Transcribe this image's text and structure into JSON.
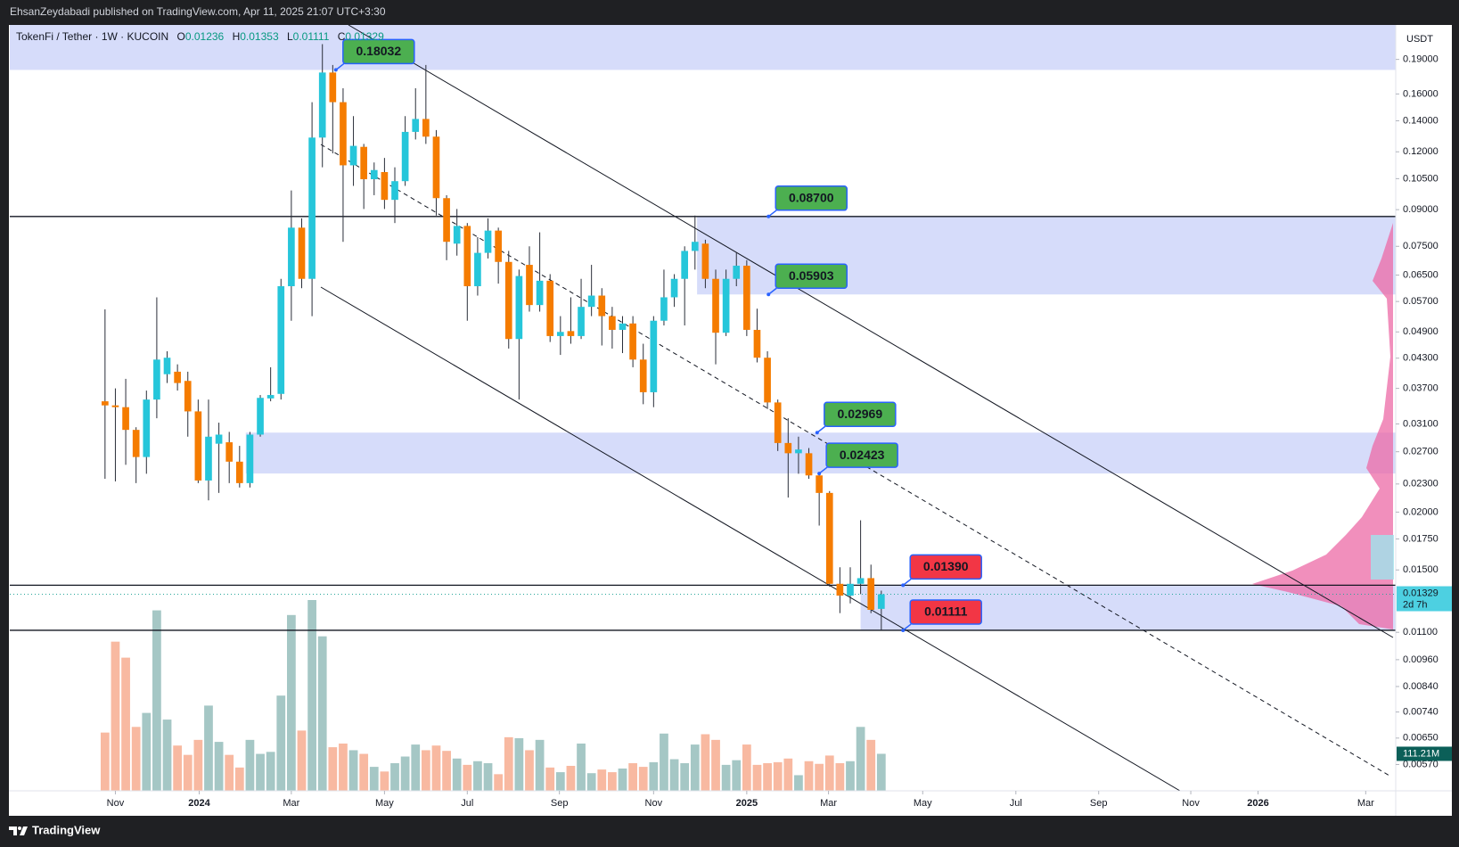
{
  "header": "EhsanZeydabadi published on TradingView.com, Apr 11, 2025 21:07 UTC+3:30",
  "footer": "TradingView",
  "chart_data": {
    "type": "candlestick",
    "title": "TokenFi / Tether · 1W · KUCOIN",
    "legend_labels": [
      "O",
      "H",
      "L",
      "C"
    ],
    "y_axis_label": "USDT",
    "log_scale": true,
    "grid": false,
    "up_color": "#26c6da",
    "down_color": "#f57c00",
    "ylim": [
      0.005,
      0.2255
    ],
    "yticks": [
      {
        "value": 0.19,
        "label": "0.19000"
      },
      {
        "value": 0.16,
        "label": "0.16000"
      },
      {
        "value": 0.14,
        "label": "0.14000"
      },
      {
        "value": 0.12,
        "label": "0.12000"
      },
      {
        "value": 0.105,
        "label": "0.10500"
      },
      {
        "value": 0.09,
        "label": "0.09000"
      },
      {
        "value": 0.075,
        "label": "0.07500"
      },
      {
        "value": 0.065,
        "label": "0.06500"
      },
      {
        "value": 0.057,
        "label": "0.05700"
      },
      {
        "value": 0.049,
        "label": "0.04900"
      },
      {
        "value": 0.043,
        "label": "0.04300"
      },
      {
        "value": 0.037,
        "label": "0.03700"
      },
      {
        "value": 0.031,
        "label": "0.03100"
      },
      {
        "value": 0.027,
        "label": "0.02700"
      },
      {
        "value": 0.023,
        "label": "0.02300"
      },
      {
        "value": 0.02,
        "label": "0.02000"
      },
      {
        "value": 0.0175,
        "label": "0.01750"
      },
      {
        "value": 0.015,
        "label": "0.01500"
      },
      {
        "value": 0.011,
        "label": "0.01100"
      },
      {
        "value": 0.0096,
        "label": "0.00960"
      },
      {
        "value": 0.0084,
        "label": "0.00840"
      },
      {
        "value": 0.0074,
        "label": "0.00740"
      },
      {
        "value": 0.0065,
        "label": "0.00650"
      },
      {
        "value": 0.0057,
        "label": "0.00570"
      }
    ],
    "xlim": [
      -9.2,
      124.7
    ],
    "xticks": [
      {
        "value": 1.0,
        "label": "Nov"
      },
      {
        "value": 9.1,
        "label": "2024"
      },
      {
        "value": 18.0,
        "label": "Mar"
      },
      {
        "value": 27.0,
        "label": "May"
      },
      {
        "value": 35.0,
        "label": "Jul"
      },
      {
        "value": 43.9,
        "label": "Sep"
      },
      {
        "value": 53.0,
        "label": "Nov"
      },
      {
        "value": 62.0,
        "label": "2025"
      },
      {
        "value": 69.9,
        "label": "Mar"
      },
      {
        "value": 79.0,
        "label": "May"
      },
      {
        "value": 88.0,
        "label": "Jul"
      },
      {
        "value": 96.0,
        "label": "Sep"
      },
      {
        "value": 104.9,
        "label": "Nov"
      },
      {
        "value": 111.4,
        "label": "2026"
      },
      {
        "value": 121.8,
        "label": "Mar"
      }
    ],
    "open": [
      0.0347,
      0.034,
      0.0337,
      0.0301,
      0.0263,
      0.035,
      0.0397,
      0.0402,
      0.0384,
      0.033,
      0.0234,
      0.0281,
      0.0283,
      0.0257,
      0.0231,
      0.0294,
      0.0352,
      0.036,
      0.0615,
      0.0823,
      0.0638,
      0.1288,
      0.178,
      0.1536,
      0.1122,
      0.123,
      0.1047,
      0.1085,
      0.0945,
      0.1037,
      0.1325,
      0.1413,
      0.1294,
      0.0953,
      0.076,
      0.083,
      0.0615,
      0.0726,
      0.0811,
      0.0694,
      0.0473,
      0.0684,
      0.056,
      0.0632,
      0.048,
      0.0492,
      0.048,
      0.0555,
      0.0587,
      0.053,
      0.0495,
      0.0511,
      0.0427,
      0.0363,
      0.0518,
      0.0582,
      0.0638,
      0.0733,
      0.076,
      0.0638,
      0.0488,
      0.0638,
      0.0681,
      0.0495,
      0.0431,
      0.0345,
      0.0282,
      0.0268,
      0.0268,
      0.024,
      0.022,
      0.014,
      0.0132,
      0.014,
      0.0144,
      0.01236
    ],
    "high": [
      0.0548,
      0.037,
      0.0388,
      0.0305,
      0.0366,
      0.0582,
      0.0445,
      0.0417,
      0.0402,
      0.035,
      0.035,
      0.0312,
      0.0298,
      0.0278,
      0.0298,
      0.0358,
      0.0411,
      0.0638,
      0.099,
      0.0862,
      0.1536,
      0.205,
      0.1848,
      0.1646,
      0.1433,
      0.1248,
      0.1138,
      0.1164,
      0.1111,
      0.1433,
      0.1646,
      0.1848,
      0.1337,
      0.0967,
      0.0903,
      0.0842,
      0.0785,
      0.0862,
      0.0823,
      0.0733,
      0.0668,
      0.075,
      0.0804,
      0.0653,
      0.053,
      0.0582,
      0.0638,
      0.0684,
      0.0609,
      0.0555,
      0.053,
      0.053,
      0.0462,
      0.053,
      0.0668,
      0.0653,
      0.075,
      0.0874,
      0.0775,
      0.0668,
      0.0668,
      0.0726,
      0.07,
      0.055,
      0.0445,
      0.035,
      0.0319,
      0.0291,
      0.0275,
      0.0242,
      0.0222,
      0.0152,
      0.0152,
      0.0192,
      0.0154,
      0.01353
    ],
    "low": [
      0.0236,
      0.0233,
      0.0253,
      0.0231,
      0.0242,
      0.0319,
      0.038,
      0.0366,
      0.0291,
      0.0231,
      0.0212,
      0.022,
      0.0231,
      0.0226,
      0.0226,
      0.0291,
      0.0347,
      0.035,
      0.0518,
      0.0609,
      0.053,
      0.1111,
      0.1191,
      0.0767,
      0.1013,
      0.0903,
      0.0967,
      0.0903,
      0.0842,
      0.1013,
      0.1276,
      0.1248,
      0.0874,
      0.07,
      0.0716,
      0.0518,
      0.0587,
      0.0706,
      0.0623,
      0.0451,
      0.035,
      0.0542,
      0.0542,
      0.0466,
      0.0437,
      0.0462,
      0.0473,
      0.053,
      0.0458,
      0.0451,
      0.0441,
      0.0411,
      0.0342,
      0.0337,
      0.0506,
      0.0555,
      0.0506,
      0.0668,
      0.0609,
      0.0417,
      0.048,
      0.0615,
      0.048,
      0.0421,
      0.0334,
      0.0271,
      0.0215,
      0.0242,
      0.0236,
      0.0187,
      0.0138,
      0.0121,
      0.0127,
      0.0133,
      0.0121,
      0.01111
    ],
    "close": [
      0.034,
      0.0337,
      0.0301,
      0.0263,
      0.035,
      0.0427,
      0.0431,
      0.038,
      0.033,
      0.0234,
      0.0291,
      0.0294,
      0.0257,
      0.0231,
      0.0294,
      0.0353,
      0.0358,
      0.0615,
      0.0823,
      0.0638,
      0.1288,
      0.178,
      0.1536,
      0.1122,
      0.1236,
      0.1047,
      0.1096,
      0.0945,
      0.1037,
      0.1325,
      0.1413,
      0.1294,
      0.0953,
      0.0767,
      0.083,
      0.0615,
      0.0726,
      0.0811,
      0.0694,
      0.0473,
      0.0647,
      0.056,
      0.0632,
      0.048,
      0.049,
      0.048,
      0.0555,
      0.0587,
      0.053,
      0.0495,
      0.0511,
      0.0427,
      0.0363,
      0.0518,
      0.0582,
      0.0638,
      0.0733,
      0.0767,
      0.0638,
      0.0488,
      0.0638,
      0.0681,
      0.0495,
      0.0431,
      0.0345,
      0.0282,
      0.0268,
      0.0273,
      0.024,
      0.022,
      0.014,
      0.0132,
      0.014,
      0.0144,
      0.0123,
      0.01329
    ],
    "countdown": "2d 7h",
    "volume": {
      "values": [
        175,
        448,
        400,
        192,
        234,
        542,
        214,
        136,
        108,
        153,
        256,
        147,
        108,
        70,
        153,
        111,
        117,
        286,
        528,
        181,
        573,
        464,
        131,
        142,
        122,
        111,
        72,
        58,
        83,
        103,
        139,
        122,
        136,
        120,
        97,
        78,
        89,
        83,
        50,
        161,
        158,
        122,
        153,
        70,
        56,
        75,
        142,
        53,
        64,
        56,
        67,
        83,
        72,
        86,
        172,
        95,
        83,
        139,
        170,
        153,
        78,
        92,
        139,
        78,
        83,
        86,
        97,
        47,
        89,
        81,
        106,
        83,
        89,
        192,
        153,
        111.21
      ],
      "lim": [
        0,
        690
      ],
      "up_color": "#a5c7c5",
      "down_color": "#f8b9a1",
      "label": "111.21M"
    },
    "levels": [
      {
        "value": 0.18032,
        "color": "#4caf50"
      },
      {
        "value": 0.087,
        "label": "0.08700",
        "color": "#4caf50"
      },
      {
        "value": 0.05903,
        "color": "#4caf50"
      },
      {
        "value": 0.02969,
        "color": "#4caf50"
      },
      {
        "value": 0.02423,
        "color": "#4caf50"
      },
      {
        "value": 0.0139,
        "label": "0.01390",
        "color": "#f23645"
      },
      {
        "value": 0.01111,
        "color": "#f23645"
      }
    ]
  }
}
